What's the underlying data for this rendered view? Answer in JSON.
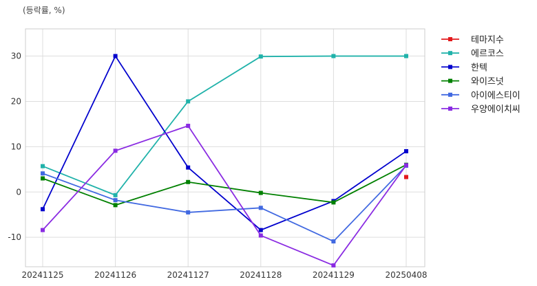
{
  "unit_label": "(등락률, %)",
  "chart_data": {
    "type": "line",
    "title": "",
    "xlabel": "",
    "ylabel": "",
    "categories": [
      "20241125",
      "20241126",
      "20241127",
      "20241128",
      "20241129",
      "20250408"
    ],
    "ylim": [
      -16.5,
      36
    ],
    "yticks": [
      30,
      20,
      10,
      0,
      -10
    ],
    "grid": true,
    "legend_position": "right",
    "series": [
      {
        "name": "테마지수",
        "color": "#e31a1c",
        "values": [
          null,
          null,
          null,
          null,
          null,
          3.3
        ]
      },
      {
        "name": "에르코스",
        "color": "#20b2aa",
        "values": [
          5.7,
          -0.7,
          20.0,
          29.9,
          30.0,
          30.0
        ]
      },
      {
        "name": "한텍",
        "color": "#0000cd",
        "values": [
          -3.8,
          30.0,
          5.4,
          -8.4,
          -2.0,
          9.0
        ]
      },
      {
        "name": "와이즈넛",
        "color": "#008000",
        "values": [
          3.0,
          -2.9,
          2.2,
          -0.2,
          -2.3,
          6.0
        ]
      },
      {
        "name": "아이에스티이",
        "color": "#4169e1",
        "values": [
          4.1,
          -1.8,
          -4.5,
          -3.5,
          -10.9,
          5.8
        ]
      },
      {
        "name": "우양에이치씨",
        "color": "#8a2be2",
        "values": [
          -8.4,
          9.1,
          14.6,
          -9.6,
          -16.2,
          5.9
        ]
      }
    ]
  }
}
